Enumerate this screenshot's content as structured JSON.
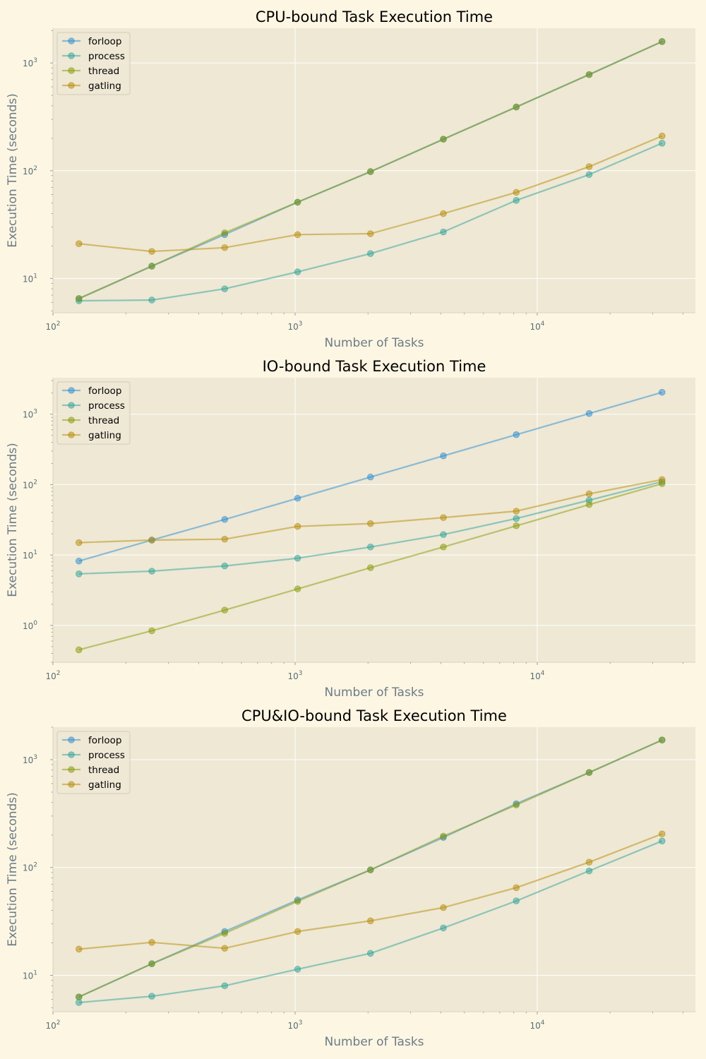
{
  "colors": {
    "figure_bg": "#fdf6e3",
    "axes_bg": "#eee8d5",
    "grid": "#ffffff",
    "forloop": "#268bd2",
    "process": "#2aa198",
    "thread": "#859900",
    "gatling": "#b58900"
  },
  "chart_data": [
    {
      "type": "line",
      "title": "CPU-bound Task Execution Time",
      "xlabel": "Number of Tasks",
      "ylabel": "Execution Time (seconds)",
      "xscale": "log",
      "yscale": "log",
      "xlim": [
        100,
        45000
      ],
      "ylim": [
        4.8,
        2100
      ],
      "grid": true,
      "legend": "top-left",
      "x_ticks": [
        {
          "base": "10",
          "exp": "2",
          "value": 100
        },
        {
          "base": "10",
          "exp": "3",
          "value": 1000
        },
        {
          "base": "10",
          "exp": "4",
          "value": 10000
        }
      ],
      "y_ticks": [
        {
          "base": "10",
          "exp": "1",
          "value": 10
        },
        {
          "base": "10",
          "exp": "2",
          "value": 100
        },
        {
          "base": "10",
          "exp": "3",
          "value": 1000
        }
      ],
      "x": [
        128,
        256,
        512,
        1024,
        2048,
        4096,
        8192,
        16384,
        32768
      ],
      "series": [
        {
          "name": "forloop",
          "color": "#268bd2",
          "values": [
            6.5,
            13,
            25.5,
            51,
            98,
            196,
            390,
            780,
            1580
          ]
        },
        {
          "name": "process",
          "color": "#2aa198",
          "values": [
            6.2,
            6.3,
            8,
            11.5,
            17,
            27,
            53,
            92,
            180
          ]
        },
        {
          "name": "thread",
          "color": "#859900",
          "values": [
            6.5,
            13,
            26.5,
            51,
            98,
            196,
            390,
            780,
            1580
          ]
        },
        {
          "name": "gatling",
          "color": "#b58900",
          "values": [
            21,
            17.8,
            19.3,
            25.5,
            26,
            40,
            63,
            109,
            210
          ]
        }
      ]
    },
    {
      "type": "line",
      "title": "IO-bound Task Execution Time",
      "xlabel": "Number of Tasks",
      "ylabel": "Execution Time (seconds)",
      "xscale": "log",
      "yscale": "log",
      "xlim": [
        100,
        45000
      ],
      "ylim": [
        0.3,
        3300
      ],
      "grid": true,
      "legend": "top-left",
      "x_ticks": [
        {
          "base": "10",
          "exp": "2",
          "value": 100
        },
        {
          "base": "10",
          "exp": "3",
          "value": 1000
        },
        {
          "base": "10",
          "exp": "4",
          "value": 10000
        }
      ],
      "y_ticks": [
        {
          "base": "10",
          "exp": "0",
          "value": 1
        },
        {
          "base": "10",
          "exp": "1",
          "value": 10
        },
        {
          "base": "10",
          "exp": "2",
          "value": 100
        },
        {
          "base": "10",
          "exp": "3",
          "value": 1000
        }
      ],
      "x": [
        128,
        256,
        512,
        1024,
        2048,
        4096,
        8192,
        16384,
        32768
      ],
      "series": [
        {
          "name": "forloop",
          "color": "#268bd2",
          "values": [
            8.2,
            16.3,
            32,
            64,
            128,
            256,
            512,
            1024,
            2048
          ]
        },
        {
          "name": "process",
          "color": "#2aa198",
          "values": [
            5.4,
            5.9,
            7,
            9,
            13,
            19.5,
            33,
            60,
            110
          ]
        },
        {
          "name": "thread",
          "color": "#859900",
          "values": [
            0.45,
            0.84,
            1.65,
            3.3,
            6.6,
            13,
            26,
            52,
            103
          ]
        },
        {
          "name": "gatling",
          "color": "#b58900",
          "values": [
            15,
            16.3,
            16.8,
            25.5,
            28,
            34,
            42,
            74,
            118
          ]
        }
      ]
    },
    {
      "type": "line",
      "title": "CPU&IO-bound Task Execution Time",
      "xlabel": "Number of Tasks",
      "ylabel": "Execution Time (seconds)",
      "xscale": "log",
      "yscale": "log",
      "xlim": [
        100,
        45000
      ],
      "ylim": [
        4.6,
        2000
      ],
      "grid": true,
      "legend": "top-left",
      "x_ticks": [
        {
          "base": "10",
          "exp": "2",
          "value": 100
        },
        {
          "base": "10",
          "exp": "3",
          "value": 1000
        },
        {
          "base": "10",
          "exp": "4",
          "value": 10000
        }
      ],
      "y_ticks": [
        {
          "base": "10",
          "exp": "1",
          "value": 10
        },
        {
          "base": "10",
          "exp": "2",
          "value": 100
        },
        {
          "base": "10",
          "exp": "3",
          "value": 1000
        }
      ],
      "x": [
        128,
        256,
        512,
        1024,
        2048,
        4096,
        8192,
        16384,
        32768
      ],
      "series": [
        {
          "name": "forloop",
          "color": "#268bd2",
          "values": [
            6.3,
            12.8,
            25.5,
            50,
            95,
            190,
            390,
            760,
            1520
          ]
        },
        {
          "name": "process",
          "color": "#2aa198",
          "values": [
            5.6,
            6.4,
            8,
            11.4,
            16,
            27.5,
            49,
            93,
            176
          ]
        },
        {
          "name": "thread",
          "color": "#859900",
          "values": [
            6.3,
            12.8,
            24.5,
            48.5,
            95,
            195,
            380,
            760,
            1520
          ]
        },
        {
          "name": "gatling",
          "color": "#b58900",
          "values": [
            17.5,
            20.2,
            17.8,
            25.5,
            32,
            42.5,
            65,
            112,
            205
          ]
        }
      ]
    }
  ]
}
